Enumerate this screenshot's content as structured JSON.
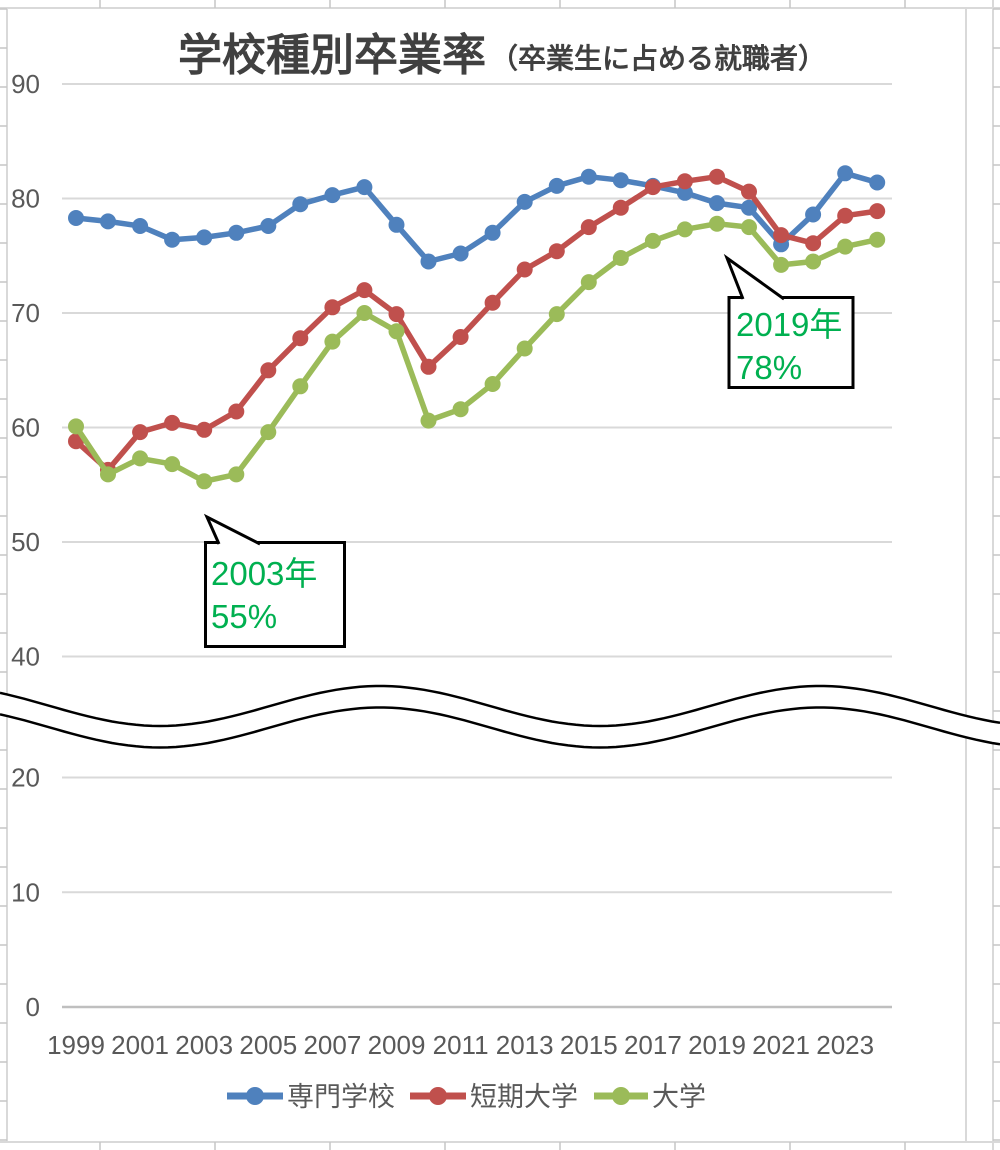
{
  "title": {
    "main": "学校種別卒業率",
    "sub": "（卒業生に占める就職者）"
  },
  "y_axis": {
    "tick_labels": [
      "90",
      "80",
      "70",
      "60",
      "50",
      "40",
      "20",
      "10",
      "0"
    ],
    "broken_between": [
      "40",
      "20"
    ]
  },
  "x_axis": {
    "tick_labels": [
      "1999",
      "2001",
      "2003",
      "2005",
      "2007",
      "2009",
      "2011",
      "2013",
      "2015",
      "2017",
      "2019",
      "2021",
      "2023"
    ]
  },
  "legend": {
    "position": "bottom",
    "items": [
      {
        "label": "専門学校",
        "color": "#4F81BD"
      },
      {
        "label": "短期大学",
        "color": "#C0504D"
      },
      {
        "label": "大学",
        "color": "#9BBB59"
      }
    ]
  },
  "annotations": [
    {
      "line1": "2003年",
      "line2": "55%",
      "target_year": 2003,
      "series": "大学"
    },
    {
      "line1": "2019年",
      "line2": "78%",
      "target_year": 2019,
      "series": "大学"
    }
  ],
  "colors": {
    "blue": "#4F81BD",
    "red": "#C0504D",
    "green": "#9BBB59",
    "title_text": "#404040",
    "axis_text": "#595959",
    "annotation_text": "#00B050",
    "gridline": "#D9D9D9",
    "axis_line": "#BFBFBF",
    "break_line": "#000000",
    "callout_border": "#000000",
    "sheet_line": "#D9D9D9",
    "sheet_tick": "#C6C6C6"
  },
  "chart_data": {
    "type": "line",
    "title": "学校種別卒業率（卒業生に占める就職者）",
    "x": [
      1999,
      2000,
      2001,
      2002,
      2003,
      2004,
      2005,
      2006,
      2007,
      2008,
      2009,
      2010,
      2011,
      2012,
      2013,
      2014,
      2015,
      2016,
      2017,
      2018,
      2019,
      2020,
      2021,
      2022,
      2023,
      2024
    ],
    "series": [
      {
        "name": "専門学校",
        "color": "#4F81BD",
        "values": [
          78.3,
          78.0,
          77.6,
          76.4,
          76.6,
          77.0,
          77.6,
          79.5,
          80.3,
          81.0,
          77.7,
          74.5,
          75.2,
          77.0,
          79.7,
          81.1,
          81.9,
          81.6,
          81.1,
          80.5,
          79.6,
          79.2,
          76.0,
          78.6,
          82.2,
          81.4
        ]
      },
      {
        "name": "短期大学",
        "color": "#C0504D",
        "values": [
          58.8,
          56.3,
          59.6,
          60.4,
          59.8,
          61.4,
          65.0,
          67.8,
          70.5,
          72.0,
          69.9,
          65.3,
          67.9,
          70.9,
          73.8,
          75.4,
          77.5,
          79.2,
          81.0,
          81.5,
          81.9,
          80.6,
          76.8,
          76.1,
          78.5,
          78.9
        ]
      },
      {
        "name": "大学",
        "color": "#9BBB59",
        "values": [
          60.1,
          55.9,
          57.3,
          56.8,
          55.3,
          55.9,
          59.6,
          63.6,
          67.5,
          70.0,
          68.4,
          60.6,
          61.6,
          63.8,
          66.9,
          69.9,
          72.7,
          74.8,
          76.3,
          77.3,
          77.8,
          77.5,
          74.2,
          74.5,
          75.8,
          76.4
        ]
      }
    ],
    "ylim": [
      0,
      90
    ],
    "y_axis_break": {
      "hidden_range": [
        20,
        40
      ]
    },
    "grid": true,
    "legend_position": "bottom",
    "xlabel": "",
    "ylabel": ""
  }
}
